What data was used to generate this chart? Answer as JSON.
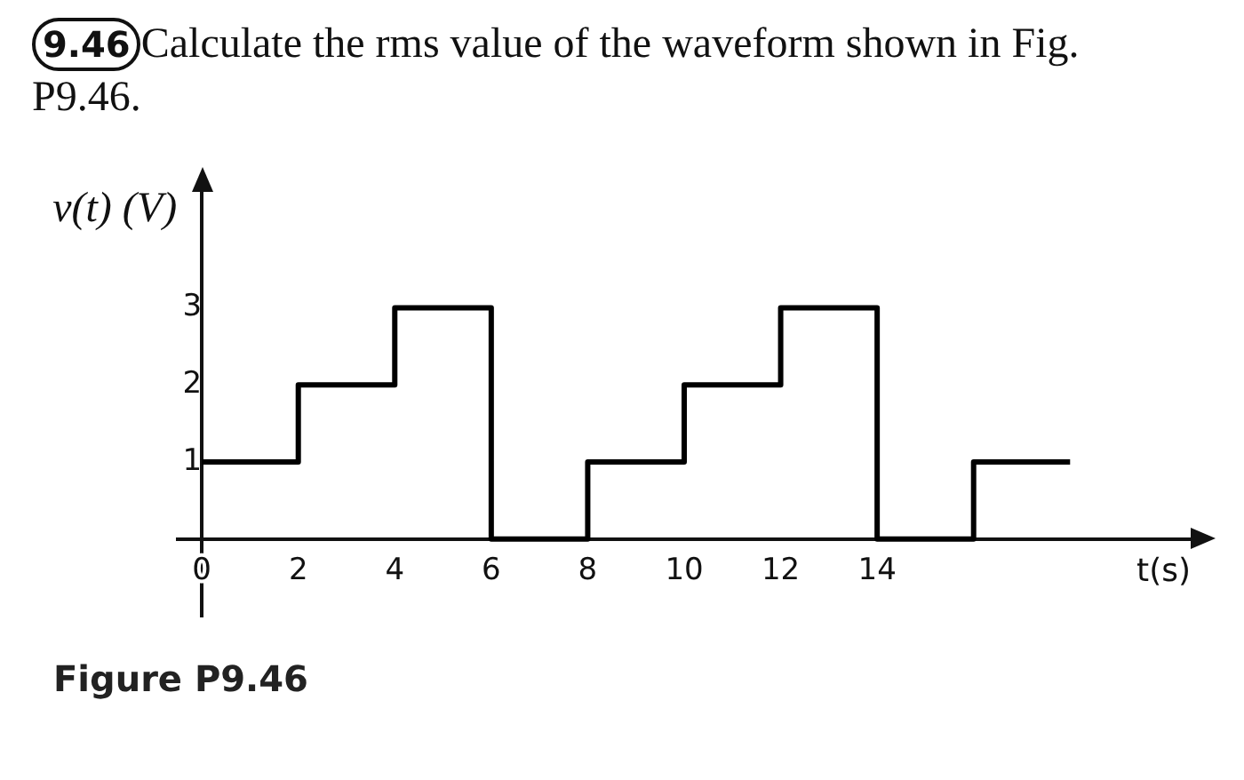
{
  "chart_data": {
    "type": "step",
    "title": "Calculate the rms value of the waveform shown in Fig. P9.46.",
    "xlabel": "t(s)",
    "ylabel": "v(t) (V)",
    "annotations": [
      "9.46",
      "Figure P9.46"
    ],
    "x": [
      0,
      2,
      4,
      6,
      8,
      10,
      12,
      14,
      16,
      18
    ],
    "series": [
      {
        "color": "#000000",
        "values": [
          1,
          2,
          3,
          0,
          1,
          2,
          3,
          0,
          1,
          1
        ]
      }
    ],
    "xlim": [
      -0.5,
      20.5
    ],
    "ylim": [
      -1,
      4.5
    ],
    "xticks": [
      0,
      2,
      4,
      6,
      8,
      10,
      12,
      14
    ],
    "yticks": [
      1,
      2,
      3
    ],
    "grid": false,
    "legend": false,
    "marker": "none",
    "line_style": "solid"
  }
}
